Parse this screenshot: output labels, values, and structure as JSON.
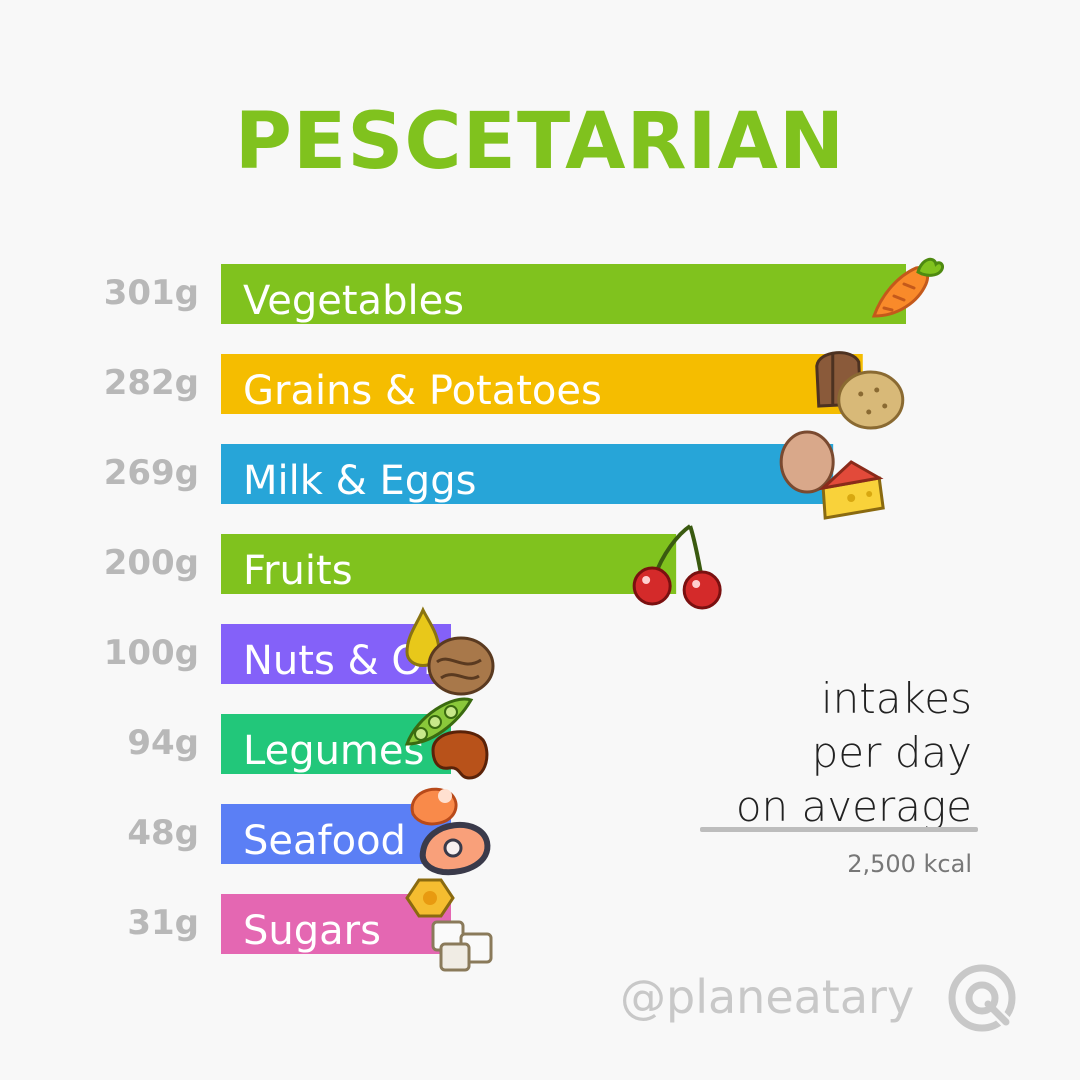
{
  "title": "PESCETARIAN",
  "note": {
    "line1": "intakes",
    "line2": "per day",
    "line3": "on average",
    "kcal": "2,500 kcal"
  },
  "handle": "@planeatary",
  "colors": {
    "title": "#80c21e",
    "vegetables": "#80c21e",
    "grains": "#f5bd00",
    "milk": "#27a5d8",
    "fruits": "#80c21e",
    "nuts": "#8461f9",
    "legumes": "#22c77a",
    "seafood": "#5b7ff5",
    "sugars": "#e467b2"
  },
  "chart_data": {
    "type": "bar",
    "orientation": "horizontal",
    "unit": "g",
    "categories": [
      "Vegetables",
      "Grains & Potatoes",
      "Milk & Eggs",
      "Fruits",
      "Nuts & Oils",
      "Legumes",
      "Seafood",
      "Sugars"
    ],
    "values": [
      301,
      282,
      269,
      200,
      100,
      94,
      48,
      31
    ],
    "value_labels": [
      "301g",
      "282g",
      "269g",
      "200g",
      "100g",
      "94g",
      "48g",
      "31g"
    ],
    "icons": [
      "carrot-icon",
      "bread-potato-icon",
      "egg-cheese-icon",
      "cherries-icon",
      "oil-walnut-icon",
      "peapod-bean-icon",
      "shrimp-salmon-icon",
      "honey-sugar-cubes-icon"
    ],
    "bar_colors": [
      "#80c21e",
      "#f5bd00",
      "#27a5d8",
      "#80c21e",
      "#8461f9",
      "#22c77a",
      "#5b7ff5",
      "#e467b2"
    ]
  }
}
